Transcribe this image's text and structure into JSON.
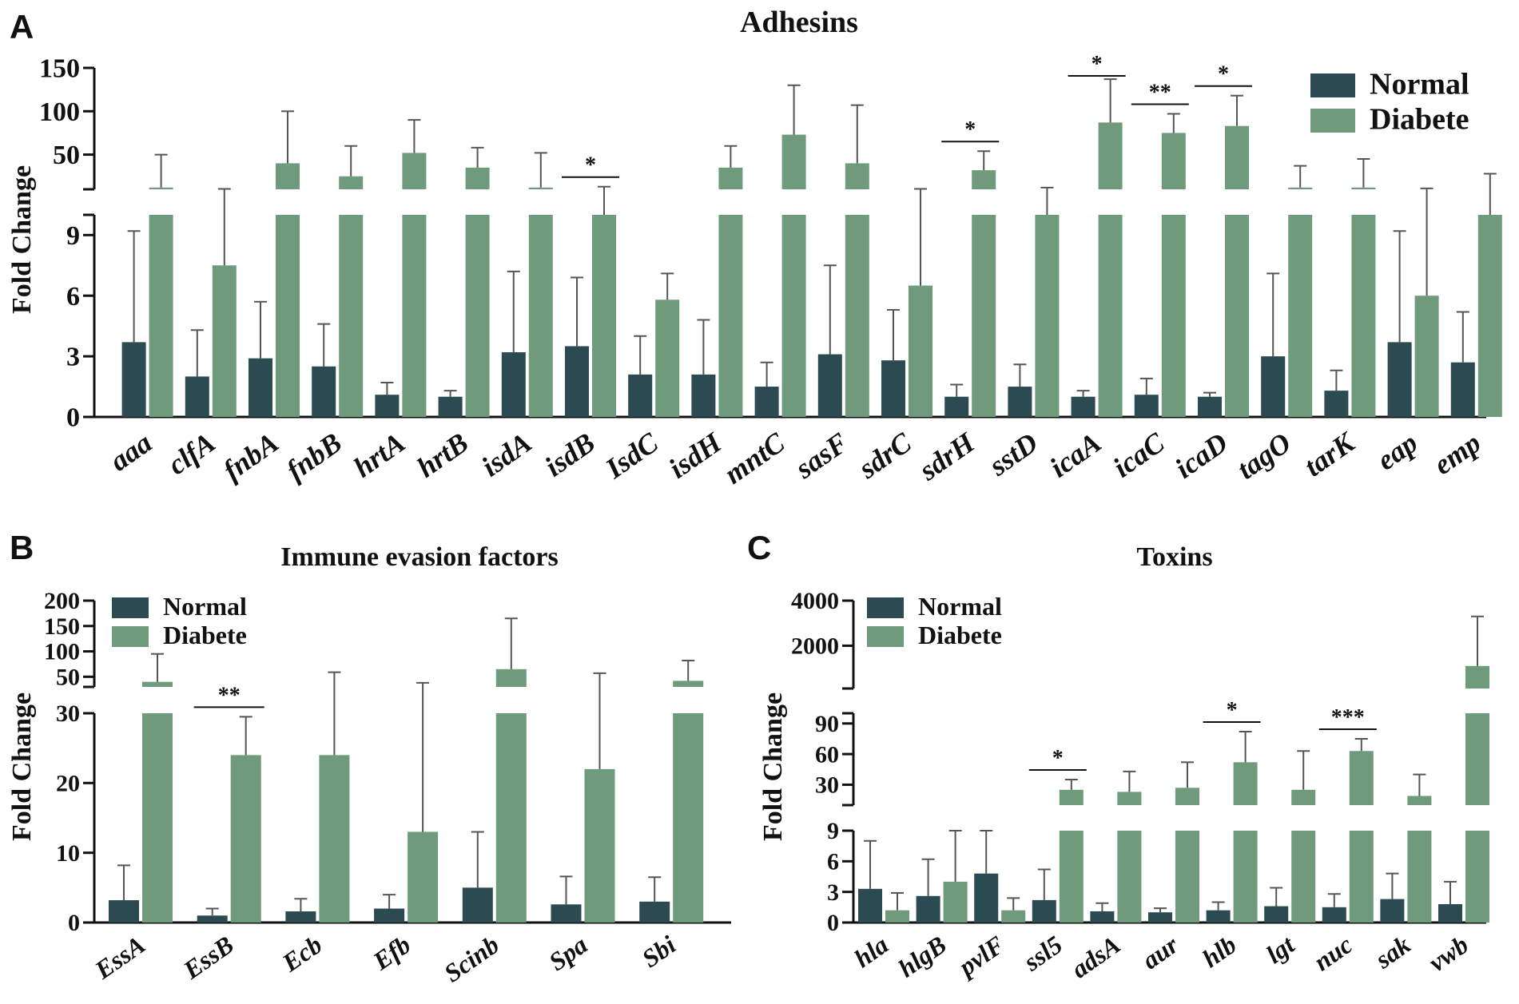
{
  "colors": {
    "normal": "#2c4a52",
    "diabete": "#6f9a7c"
  },
  "chart_data": [
    {
      "panel": "A",
      "type": "bar",
      "title": "Adhesins",
      "ylabel": "Fold Change",
      "legend": [
        "Normal",
        "Diabete"
      ],
      "legend_position": "top-right",
      "axis_breaks": [
        {
          "range": [
            0,
            10
          ],
          "ticks": [
            0,
            3,
            6,
            9
          ]
        },
        {
          "range": [
            10,
            150
          ],
          "ticks": [
            50,
            100,
            150
          ]
        }
      ],
      "categories": [
        "aaa",
        "clfA",
        "fnbA",
        "fnbB",
        "hrtA",
        "hrtB",
        "isdA",
        "isdB",
        "IsdC",
        "isdH",
        "mntC",
        "sasF",
        "sdrC",
        "sdrH",
        "sstD",
        "icaA",
        "icaC",
        "icaD",
        "tagO",
        "tarK",
        "eap",
        "emp"
      ],
      "series": [
        {
          "name": "Normal",
          "values": [
            3.7,
            2.0,
            2.9,
            2.5,
            1.1,
            1.0,
            3.2,
            3.5,
            2.1,
            2.1,
            1.5,
            3.1,
            2.8,
            1.0,
            1.5,
            1.0,
            1.1,
            1.0,
            3.0,
            1.3,
            3.7,
            2.7
          ],
          "errors": [
            5.5,
            2.3,
            2.8,
            2.1,
            0.6,
            0.3,
            4.0,
            3.4,
            1.9,
            2.7,
            1.2,
            4.4,
            2.5,
            0.6,
            1.1,
            0.3,
            0.8,
            0.2,
            4.1,
            1.0,
            5.5,
            2.5
          ]
        },
        {
          "name": "Diabete",
          "values": [
            12,
            7.5,
            40,
            25,
            52,
            35,
            12,
            10,
            5.8,
            35,
            73,
            40,
            6.5,
            32,
            10,
            87,
            75,
            83,
            12,
            12,
            6.0,
            10
          ],
          "errors": [
            38,
            3,
            60,
            35,
            38,
            23,
            40,
            3,
            1.3,
            25,
            57,
            67,
            4,
            22,
            2,
            50,
            22,
            35,
            25,
            33,
            5,
            18
          ]
        }
      ],
      "significance": [
        {
          "category": "isdB",
          "label": "*"
        },
        {
          "category": "sdrH",
          "label": "*"
        },
        {
          "category": "icaA",
          "label": "*"
        },
        {
          "category": "icaC",
          "label": "**"
        },
        {
          "category": "icaD",
          "label": "*"
        }
      ]
    },
    {
      "panel": "B",
      "type": "bar",
      "title": "Immune evasion factors",
      "ylabel": "Fold Change",
      "legend": [
        "Normal",
        "Diabete"
      ],
      "legend_position": "top-left",
      "axis_breaks": [
        {
          "range": [
            0,
            30
          ],
          "ticks": [
            0,
            10,
            20,
            30
          ]
        },
        {
          "range": [
            30,
            200
          ],
          "ticks": [
            50,
            100,
            150,
            200
          ]
        }
      ],
      "categories": [
        "EssA",
        "EssB",
        "Ecb",
        "Efb",
        "Scinb",
        "Spa",
        "Sbi"
      ],
      "series": [
        {
          "name": "Normal",
          "values": [
            3.2,
            1.0,
            1.6,
            2.0,
            5.0,
            2.6,
            3.0
          ],
          "errors": [
            5.0,
            1.0,
            1.8,
            2.0,
            8.0,
            4.0,
            3.5
          ]
        },
        {
          "name": "Diabete",
          "values": [
            40,
            24,
            24,
            13,
            65,
            22,
            42
          ],
          "errors": [
            55,
            5.5,
            35,
            25,
            100,
            35,
            40
          ]
        }
      ],
      "significance": [
        {
          "category": "EssB",
          "label": "**"
        }
      ]
    },
    {
      "panel": "C",
      "type": "bar",
      "title": "Toxins",
      "ylabel": "Fold Change",
      "legend": [
        "Normal",
        "Diabete"
      ],
      "legend_position": "top-left",
      "axis_breaks": [
        {
          "range": [
            0,
            9
          ],
          "ticks": [
            0,
            3,
            6,
            9
          ]
        },
        {
          "range": [
            10,
            100
          ],
          "ticks": [
            30,
            60,
            90
          ]
        },
        {
          "range": [
            100,
            4000
          ],
          "ticks": [
            2000,
            4000
          ]
        }
      ],
      "categories": [
        "hla",
        "hlgB",
        "pvlF",
        "ssl5",
        "adsA",
        "aur",
        "hlb",
        "lgt",
        "nuc",
        "sak",
        "vwb"
      ],
      "series": [
        {
          "name": "Normal",
          "values": [
            3.3,
            2.6,
            4.8,
            2.2,
            1.1,
            1.0,
            1.2,
            1.6,
            1.5,
            2.3,
            1.8
          ],
          "errors": [
            4.7,
            3.6,
            4.2,
            3.0,
            0.8,
            0.4,
            0.8,
            1.8,
            1.3,
            2.5,
            2.2
          ]
        },
        {
          "name": "Diabete",
          "values": [
            1.2,
            4.0,
            1.2,
            25,
            23,
            27,
            52,
            25,
            63,
            19,
            1100
          ],
          "errors": [
            1.7,
            5.0,
            1.2,
            10,
            20,
            25,
            30,
            38,
            12,
            21,
            2200
          ]
        }
      ],
      "significance": [
        {
          "category": "ssl5",
          "label": "*"
        },
        {
          "category": "hlb",
          "label": "*"
        },
        {
          "category": "nuc",
          "label": "***"
        }
      ]
    }
  ]
}
